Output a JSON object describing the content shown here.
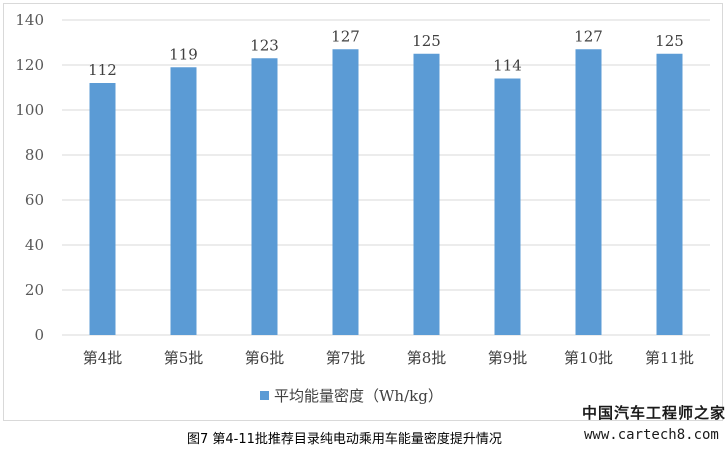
{
  "chart_data": {
    "type": "bar",
    "categories": [
      "第4批",
      "第5批",
      "第6批",
      "第7批",
      "第8批",
      "第9批",
      "第10批",
      "第11批"
    ],
    "series": [
      {
        "name": "平均能量密度（Wh/kg）",
        "values": [
          112,
          119,
          123,
          127,
          125,
          114,
          127,
          125
        ]
      }
    ],
    "ylim": [
      0,
      140
    ],
    "yticks": [
      0,
      20,
      40,
      60,
      80,
      100,
      120,
      140
    ],
    "grid": true,
    "legend": "bottom",
    "bar_color": "#5b9bd5",
    "grid_color": "#d9d9d9"
  },
  "caption": "图7 第4-11批推荐目录纯电动乘用车能量密度提升情况",
  "watermark": {
    "name": "中国汽车工程师之家",
    "url": "www.cartech8.com"
  }
}
